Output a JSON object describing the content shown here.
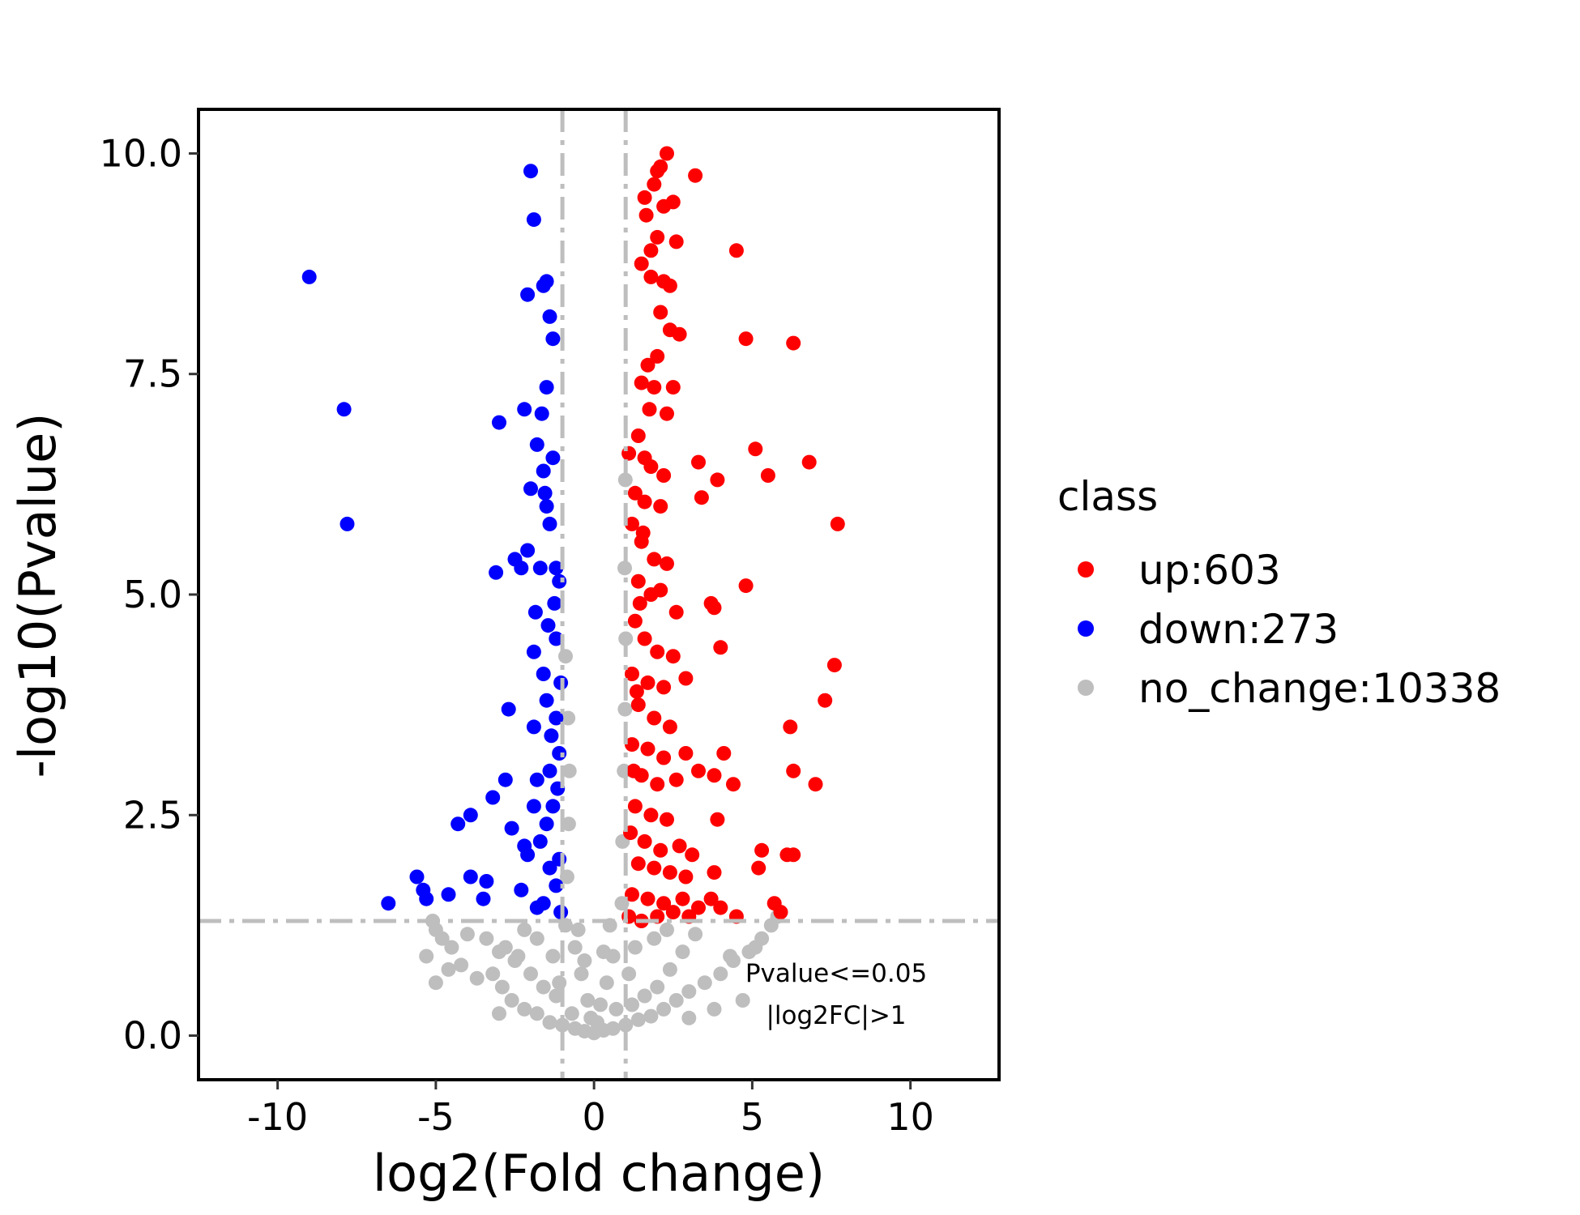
{
  "chart_data": {
    "type": "scatter",
    "xlabel": "log2(Fold change)",
    "ylabel": "-log10(Pvalue)",
    "xlim": [
      -12.5,
      12.8
    ],
    "ylim": [
      -0.5,
      10.5
    ],
    "x_ticks": [
      {
        "value": -10,
        "label": "-10"
      },
      {
        "value": -5,
        "label": "-5"
      },
      {
        "value": 0,
        "label": "0"
      },
      {
        "value": 5,
        "label": "5"
      },
      {
        "value": 10,
        "label": "10"
      }
    ],
    "y_ticks": [
      {
        "value": 0,
        "label": "0.0"
      },
      {
        "value": 2.5,
        "label": "2.5"
      },
      {
        "value": 5,
        "label": "5.0"
      },
      {
        "value": 7.5,
        "label": "7.5"
      },
      {
        "value": 10,
        "label": "10.0"
      }
    ],
    "grid": false,
    "threshold_lines": {
      "x": [
        -1,
        1
      ],
      "y": 1.3
    },
    "threshold_color": "#bebebe",
    "annotation": [
      "Pvalue<=0.05",
      "|log2FC|>1"
    ],
    "legend": {
      "title": "class",
      "placement": "right",
      "entries": [
        {
          "label": "up:603",
          "color": "#ff0000"
        },
        {
          "label": "down:273",
          "color": "#0000ff"
        },
        {
          "label": "no_change:10338",
          "color": "#bebebe"
        }
      ]
    },
    "series": [
      {
        "class": "no_change",
        "color": "#bebebe",
        "points": [
          [
            -5.1,
            1.3
          ],
          [
            -5.0,
            1.2
          ],
          [
            -5.3,
            0.9
          ],
          [
            -4.6,
            0.75
          ],
          [
            -5.0,
            0.6
          ],
          [
            -4.2,
            0.8
          ],
          [
            -4.8,
            1.1
          ],
          [
            -3.7,
            0.65
          ],
          [
            -3.2,
            0.7
          ],
          [
            -2.9,
            0.55
          ],
          [
            -3.0,
            0.95
          ],
          [
            -2.6,
            0.4
          ],
          [
            -2.2,
            0.3
          ],
          [
            -2.5,
            0.85
          ],
          [
            -1.8,
            0.25
          ],
          [
            -1.4,
            0.15
          ],
          [
            -1.0,
            0.12
          ],
          [
            -0.6,
            0.08
          ],
          [
            -0.3,
            0.05
          ],
          [
            0,
            0.03
          ],
          [
            0.3,
            0.06
          ],
          [
            0.6,
            0.08
          ],
          [
            1.0,
            0.12
          ],
          [
            1.4,
            0.18
          ],
          [
            1.8,
            0.22
          ],
          [
            2.2,
            0.3
          ],
          [
            2.6,
            0.4
          ],
          [
            3.0,
            0.5
          ],
          [
            3.5,
            0.6
          ],
          [
            4.0,
            0.7
          ],
          [
            4.4,
            0.85
          ],
          [
            4.9,
            0.95
          ],
          [
            5.3,
            1.1
          ],
          [
            5.6,
            1.25
          ],
          [
            5.8,
            1.35
          ],
          [
            5.1,
            1.0
          ],
          [
            4.7,
            0.4
          ],
          [
            4.3,
            0.9
          ],
          [
            3.8,
            0.3
          ],
          [
            3.2,
            1.15
          ],
          [
            2.8,
            0.95
          ],
          [
            2.4,
            0.75
          ],
          [
            2.0,
            0.55
          ],
          [
            1.6,
            0.45
          ],
          [
            1.2,
            0.35
          ],
          [
            -1.2,
            0.45
          ],
          [
            -1.6,
            0.55
          ],
          [
            -2.0,
            0.7
          ],
          [
            -2.4,
            0.9
          ],
          [
            -2.8,
            1.0
          ],
          [
            -3.4,
            1.1
          ],
          [
            -4.0,
            1.15
          ],
          [
            -4.5,
            1.0
          ],
          [
            -0.9,
            1.25
          ],
          [
            -0.85,
            1.8
          ],
          [
            -0.8,
            2.4
          ],
          [
            -0.78,
            3.0
          ],
          [
            -0.82,
            3.6
          ],
          [
            -0.9,
            4.3
          ],
          [
            0.88,
            1.5
          ],
          [
            0.9,
            2.2
          ],
          [
            0.95,
            3.0
          ],
          [
            0.98,
            3.7
          ],
          [
            1.0,
            4.5
          ],
          [
            0.97,
            5.3
          ],
          [
            0.99,
            6.3
          ],
          [
            0.6,
            0.9
          ],
          [
            -0.6,
            1.0
          ],
          [
            0.4,
            0.6
          ],
          [
            -0.4,
            0.7
          ],
          [
            0.2,
            0.35
          ],
          [
            -0.2,
            0.4
          ],
          [
            -1.3,
            0.9
          ],
          [
            1.3,
            1.0
          ],
          [
            -1.8,
            1.1
          ],
          [
            1.9,
            1.1
          ],
          [
            -2.2,
            1.2
          ],
          [
            2.3,
            1.2
          ],
          [
            -0.1,
            0.2
          ],
          [
            0.1,
            0.15
          ],
          [
            0.7,
            0.3
          ],
          [
            -0.7,
            0.25
          ],
          [
            -1.1,
            0.6
          ],
          [
            1.1,
            0.7
          ],
          [
            -0.5,
            1.2
          ],
          [
            0.5,
            1.25
          ],
          [
            0.3,
            0.95
          ],
          [
            -0.3,
            0.85
          ],
          [
            3.0,
            0.2
          ],
          [
            -3.0,
            0.25
          ]
        ]
      },
      {
        "class": "down",
        "color": "#0000ff",
        "points": [
          [
            -9.0,
            8.6
          ],
          [
            -7.9,
            7.1
          ],
          [
            -7.8,
            5.8
          ],
          [
            -6.5,
            1.5
          ],
          [
            -5.6,
            1.8
          ],
          [
            -5.4,
            1.65
          ],
          [
            -5.3,
            1.55
          ],
          [
            -4.6,
            1.6
          ],
          [
            -4.3,
            2.4
          ],
          [
            -3.9,
            1.8
          ],
          [
            -3.9,
            2.5
          ],
          [
            -3.5,
            1.55
          ],
          [
            -3.4,
            1.75
          ],
          [
            -3.2,
            2.7
          ],
          [
            -3.1,
            5.25
          ],
          [
            -3.0,
            6.95
          ],
          [
            -2.8,
            2.9
          ],
          [
            -2.7,
            3.7
          ],
          [
            -2.6,
            2.35
          ],
          [
            -2.5,
            5.4
          ],
          [
            -2.3,
            1.65
          ],
          [
            -2.2,
            2.15
          ],
          [
            -2.2,
            7.1
          ],
          [
            -2.1,
            8.4
          ],
          [
            -2.1,
            5.5
          ],
          [
            -2.0,
            6.2
          ],
          [
            -2.0,
            9.8
          ],
          [
            -1.9,
            9.25
          ],
          [
            -1.9,
            4.35
          ],
          [
            -1.9,
            3.5
          ],
          [
            -1.8,
            6.7
          ],
          [
            -1.8,
            2.9
          ],
          [
            -1.7,
            5.3
          ],
          [
            -1.6,
            8.5
          ],
          [
            -1.6,
            6.4
          ],
          [
            -1.5,
            8.55
          ],
          [
            -1.5,
            7.35
          ],
          [
            -1.5,
            6.0
          ],
          [
            -1.4,
            3.0
          ],
          [
            -1.4,
            8.15
          ],
          [
            -1.4,
            5.8
          ],
          [
            -1.3,
            7.9
          ],
          [
            -1.3,
            6.55
          ],
          [
            -1.2,
            5.3
          ],
          [
            -1.2,
            4.5
          ],
          [
            -1.1,
            5.15
          ],
          [
            -1.1,
            3.2
          ],
          [
            -1.05,
            1.4
          ],
          [
            -1.6,
            4.1
          ],
          [
            -1.5,
            3.8
          ],
          [
            -1.2,
            3.6
          ],
          [
            -1.3,
            2.6
          ],
          [
            -1.5,
            2.4
          ],
          [
            -1.7,
            2.2
          ],
          [
            -1.4,
            1.9
          ],
          [
            -1.2,
            1.7
          ],
          [
            -1.6,
            1.5
          ],
          [
            -1.8,
            1.45
          ],
          [
            -1.1,
            2.0
          ],
          [
            -1.9,
            2.6
          ],
          [
            -2.1,
            2.05
          ],
          [
            -1.25,
            4.9
          ],
          [
            -1.45,
            4.65
          ],
          [
            -1.05,
            4.0
          ],
          [
            -1.15,
            2.8
          ],
          [
            -1.35,
            3.4
          ],
          [
            -1.55,
            6.15
          ],
          [
            -1.85,
            4.8
          ],
          [
            -2.3,
            5.3
          ],
          [
            -1.65,
            7.05
          ]
        ]
      },
      {
        "class": "up",
        "color": "#ff0000",
        "points": [
          [
            2.3,
            10.0
          ],
          [
            2.1,
            9.85
          ],
          [
            1.9,
            9.65
          ],
          [
            2.0,
            9.8
          ],
          [
            3.2,
            9.75
          ],
          [
            1.6,
            9.5
          ],
          [
            2.5,
            9.45
          ],
          [
            2.2,
            9.4
          ],
          [
            1.65,
            9.3
          ],
          [
            4.5,
            8.9
          ],
          [
            2.6,
            9.0
          ],
          [
            2.0,
            9.05
          ],
          [
            1.8,
            8.9
          ],
          [
            1.5,
            8.75
          ],
          [
            1.8,
            8.6
          ],
          [
            2.2,
            8.55
          ],
          [
            2.4,
            8.5
          ],
          [
            2.1,
            8.2
          ],
          [
            2.4,
            8.0
          ],
          [
            2.7,
            7.95
          ],
          [
            4.8,
            7.9
          ],
          [
            6.3,
            7.85
          ],
          [
            1.7,
            7.6
          ],
          [
            2.0,
            7.7
          ],
          [
            1.5,
            7.4
          ],
          [
            1.9,
            7.35
          ],
          [
            2.5,
            7.35
          ],
          [
            2.3,
            7.05
          ],
          [
            1.4,
            6.8
          ],
          [
            1.6,
            6.55
          ],
          [
            1.8,
            6.45
          ],
          [
            3.3,
            6.5
          ],
          [
            3.9,
            6.3
          ],
          [
            5.1,
            6.65
          ],
          [
            5.5,
            6.35
          ],
          [
            6.8,
            6.5
          ],
          [
            2.2,
            6.35
          ],
          [
            1.3,
            6.15
          ],
          [
            1.6,
            6.05
          ],
          [
            2.1,
            6.0
          ],
          [
            3.4,
            6.1
          ],
          [
            7.7,
            5.8
          ],
          [
            1.2,
            5.8
          ],
          [
            1.5,
            5.6
          ],
          [
            1.9,
            5.4
          ],
          [
            2.3,
            5.35
          ],
          [
            1.4,
            5.15
          ],
          [
            1.8,
            5.0
          ],
          [
            2.1,
            5.05
          ],
          [
            2.6,
            4.8
          ],
          [
            4.8,
            5.1
          ],
          [
            3.7,
            4.9
          ],
          [
            3.8,
            4.85
          ],
          [
            1.3,
            4.7
          ],
          [
            1.6,
            4.5
          ],
          [
            2.0,
            4.35
          ],
          [
            2.5,
            4.3
          ],
          [
            4.0,
            4.4
          ],
          [
            7.6,
            4.2
          ],
          [
            1.2,
            4.1
          ],
          [
            1.7,
            4.0
          ],
          [
            2.2,
            3.95
          ],
          [
            2.9,
            4.05
          ],
          [
            7.3,
            3.8
          ],
          [
            1.4,
            3.75
          ],
          [
            1.9,
            3.6
          ],
          [
            2.4,
            3.5
          ],
          [
            1.2,
            3.3
          ],
          [
            1.7,
            3.25
          ],
          [
            2.2,
            3.15
          ],
          [
            2.9,
            3.2
          ],
          [
            4.1,
            3.2
          ],
          [
            6.2,
            3.5
          ],
          [
            1.5,
            2.95
          ],
          [
            2.0,
            2.85
          ],
          [
            2.6,
            2.9
          ],
          [
            3.3,
            3.0
          ],
          [
            3.8,
            2.95
          ],
          [
            4.4,
            2.85
          ],
          [
            6.3,
            3.0
          ],
          [
            7.0,
            2.85
          ],
          [
            1.3,
            2.6
          ],
          [
            1.8,
            2.5
          ],
          [
            2.3,
            2.45
          ],
          [
            3.9,
            2.45
          ],
          [
            1.6,
            2.2
          ],
          [
            2.1,
            2.1
          ],
          [
            2.7,
            2.15
          ],
          [
            3.1,
            2.05
          ],
          [
            5.3,
            2.1
          ],
          [
            6.1,
            2.05
          ],
          [
            6.3,
            2.05
          ],
          [
            1.4,
            1.95
          ],
          [
            1.9,
            1.9
          ],
          [
            2.4,
            1.85
          ],
          [
            2.9,
            1.8
          ],
          [
            3.8,
            1.85
          ],
          [
            5.2,
            1.9
          ],
          [
            1.2,
            1.6
          ],
          [
            1.7,
            1.55
          ],
          [
            2.2,
            1.5
          ],
          [
            2.8,
            1.55
          ],
          [
            3.3,
            1.45
          ],
          [
            3.7,
            1.55
          ],
          [
            4.0,
            1.45
          ],
          [
            4.5,
            1.35
          ],
          [
            5.7,
            1.5
          ],
          [
            5.9,
            1.4
          ],
          [
            1.1,
            1.35
          ],
          [
            1.5,
            1.3
          ],
          [
            2.0,
            1.35
          ],
          [
            2.5,
            1.4
          ],
          [
            3.0,
            1.35
          ],
          [
            1.15,
            2.3
          ],
          [
            1.25,
            3.0
          ],
          [
            1.35,
            3.9
          ],
          [
            1.45,
            4.9
          ],
          [
            1.55,
            5.7
          ],
          [
            1.1,
            6.6
          ],
          [
            1.75,
            7.1
          ]
        ]
      }
    ]
  }
}
